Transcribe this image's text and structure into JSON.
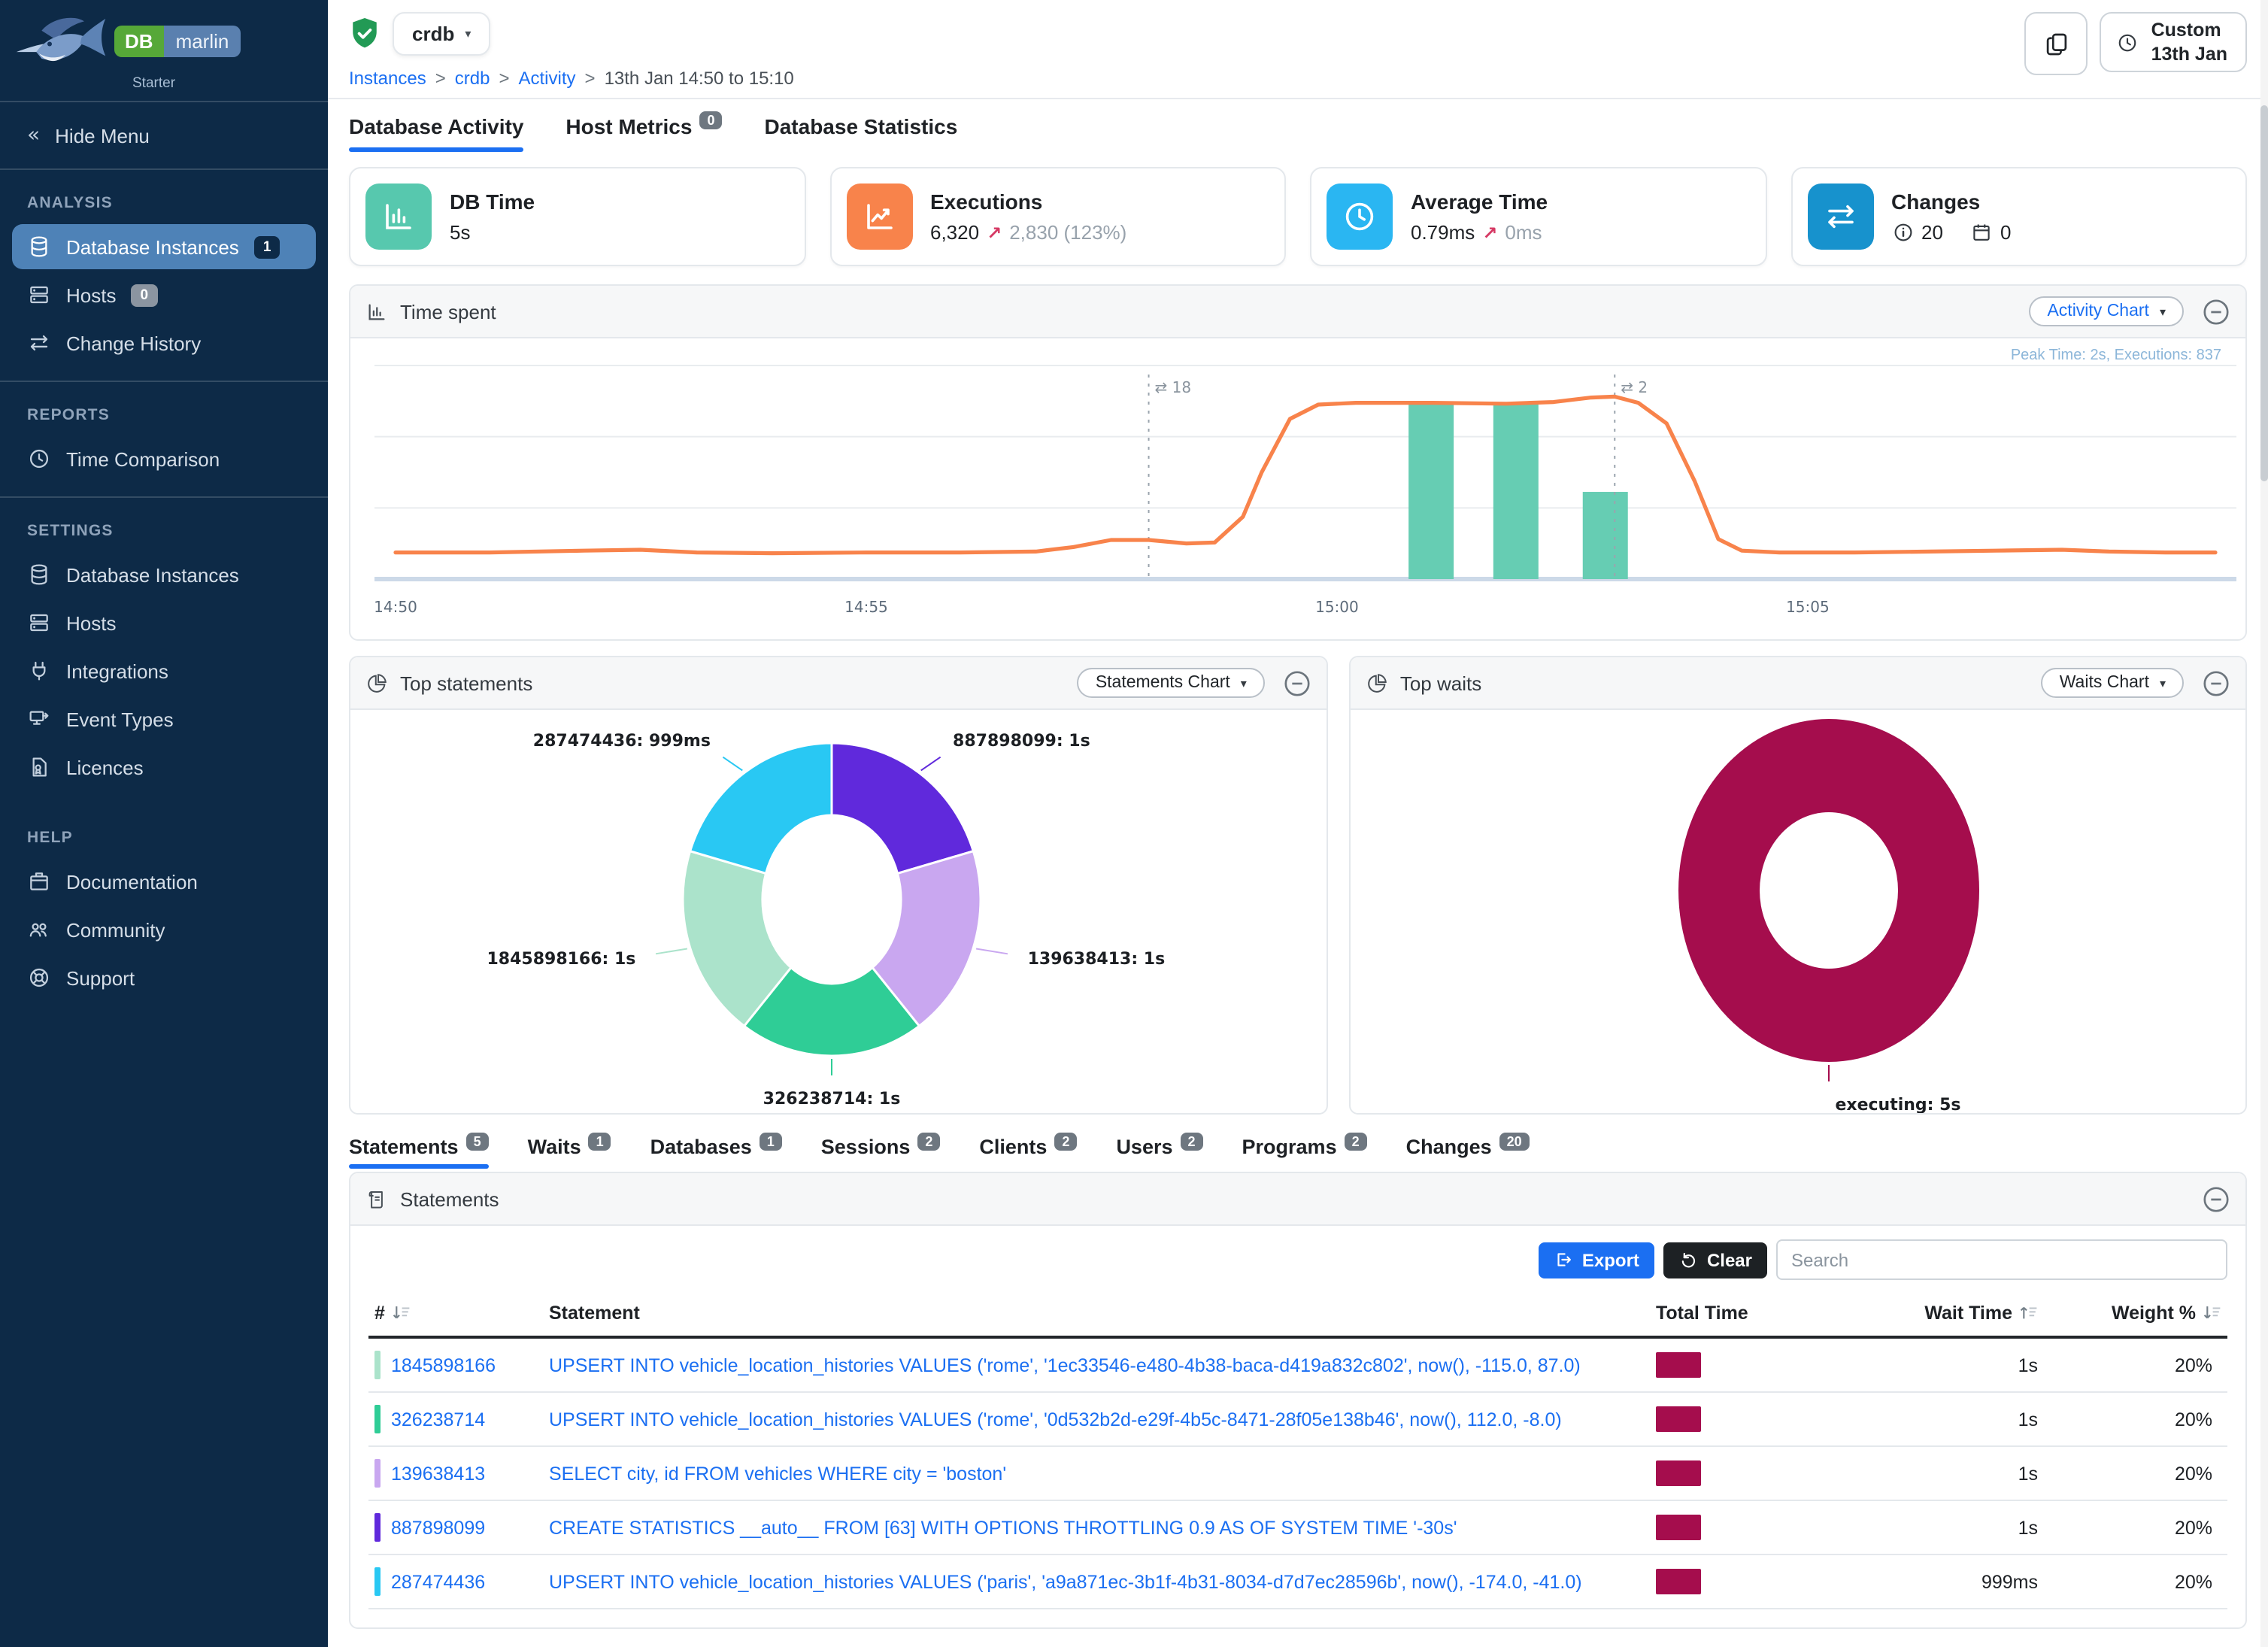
{
  "brand": {
    "db": "DB",
    "marlin": "marlin",
    "edition": "Starter"
  },
  "colors": {
    "accent_blue": "#1b6ff2",
    "db_time_icon": "#57c8ae",
    "executions_icon": "#f8834b",
    "avg_time_icon": "#2ab6f2",
    "changes_icon": "#1792cd",
    "total_time_bar": "#a50d4d"
  },
  "topbar": {
    "instance": "crdb",
    "breadcrumbs": [
      {
        "label": "Instances",
        "link": true
      },
      {
        "label": "crdb",
        "link": true
      },
      {
        "label": "Activity",
        "link": true
      },
      {
        "label": "13th Jan 14:50 to 15:10",
        "link": false
      }
    ],
    "custom_line1": "Custom",
    "custom_line2": "13th Jan"
  },
  "sidebar": {
    "hide_menu": "Hide Menu",
    "sections": [
      {
        "label": "ANALYSIS",
        "divider": false,
        "items": [
          {
            "label": "Database Instances",
            "icon": "database",
            "badge": "1",
            "active": true
          },
          {
            "label": "Hosts",
            "icon": "server",
            "badge": "0"
          },
          {
            "label": "Change History",
            "icon": "swap"
          }
        ]
      },
      {
        "label": "REPORTS",
        "divider": true,
        "items": [
          {
            "label": "Time Comparison",
            "icon": "clock"
          }
        ]
      },
      {
        "label": "SETTINGS",
        "divider": true,
        "items": [
          {
            "label": "Database Instances",
            "icon": "database"
          },
          {
            "label": "Hosts",
            "icon": "server"
          },
          {
            "label": "Integrations",
            "icon": "plug"
          },
          {
            "label": "Event Types",
            "icon": "event"
          },
          {
            "label": "Licences",
            "icon": "licence"
          }
        ]
      },
      {
        "label": "HELP",
        "divider": false,
        "items": [
          {
            "label": "Documentation",
            "icon": "docs"
          },
          {
            "label": "Community",
            "icon": "people"
          },
          {
            "label": "Support",
            "icon": "support"
          }
        ]
      }
    ]
  },
  "tabs": [
    {
      "label": "Database Activity",
      "active": true
    },
    {
      "label": "Host Metrics",
      "badge": "0",
      "active": false
    },
    {
      "label": "Database Statistics",
      "active": false
    }
  ],
  "cards": {
    "db_time": {
      "title": "DB Time",
      "value": "5s"
    },
    "executions": {
      "title": "Executions",
      "value": "6,320",
      "delta_arrow": "↗",
      "delta": "2,830 (123%)"
    },
    "avg_time": {
      "title": "Average Time",
      "value": "0.79ms",
      "delta_arrow": "↗",
      "delta": "0ms"
    },
    "changes": {
      "title": "Changes",
      "info_count": "20",
      "event_count": "0"
    }
  },
  "time_spent": {
    "title": "Time spent",
    "chart_type_label": "Activity Chart",
    "peak_label": "Peak Time: 2s, Executions: 837",
    "line_color": "#f8834b",
    "bar_color": "#66cdb3",
    "y_max": 2.4,
    "x_max": 19.33,
    "x_labels": [
      {
        "label": "14:50",
        "minute": 0
      },
      {
        "label": "14:55",
        "minute": 5
      },
      {
        "label": "15:00",
        "minute": 10
      },
      {
        "label": "15:05",
        "minute": 15
      }
    ],
    "line": [
      [
        0,
        0.3
      ],
      [
        1,
        0.3
      ],
      [
        2,
        0.32
      ],
      [
        2.6,
        0.33
      ],
      [
        3.2,
        0.3
      ],
      [
        4,
        0.29
      ],
      [
        5,
        0.3
      ],
      [
        6,
        0.3
      ],
      [
        6.8,
        0.31
      ],
      [
        7.2,
        0.36
      ],
      [
        7.6,
        0.44
      ],
      [
        8,
        0.44
      ],
      [
        8.4,
        0.4
      ],
      [
        8.7,
        0.41
      ],
      [
        9,
        0.7
      ],
      [
        9.2,
        1.2
      ],
      [
        9.5,
        1.8
      ],
      [
        9.8,
        1.96
      ],
      [
        10.2,
        1.98
      ],
      [
        11,
        1.98
      ],
      [
        11.8,
        1.97
      ],
      [
        12.3,
        1.99
      ],
      [
        12.7,
        2.04
      ],
      [
        12.95,
        2.05
      ],
      [
        13.2,
        1.98
      ],
      [
        13.5,
        1.75
      ],
      [
        13.8,
        1.1
      ],
      [
        14.05,
        0.45
      ],
      [
        14.3,
        0.32
      ],
      [
        14.7,
        0.3
      ],
      [
        15.5,
        0.3
      ],
      [
        16.3,
        0.31
      ],
      [
        17,
        0.32
      ],
      [
        17.7,
        0.33
      ],
      [
        18.2,
        0.31
      ],
      [
        18.8,
        0.3
      ],
      [
        19.33,
        0.3
      ]
    ],
    "bars": [
      {
        "minute": 11.0,
        "value": 1.97
      },
      {
        "minute": 11.9,
        "value": 1.97
      },
      {
        "minute": 12.85,
        "value": 0.98
      }
    ],
    "markers": [
      {
        "minute": 8,
        "label": "⇄ 18"
      },
      {
        "minute": 12.95,
        "label": "⇄ 2"
      }
    ]
  },
  "top_statements": {
    "title": "Top statements",
    "chart_type_label": "Statements Chart",
    "slices": [
      {
        "id": "887898099",
        "time": "1s",
        "pct": 20,
        "color": "#6029dc"
      },
      {
        "id": "139638413",
        "time": "1s",
        "pct": 20,
        "color": "#c9a7f0"
      },
      {
        "id": "326238714",
        "time": "1s",
        "pct": 20,
        "color": "#2fcd96"
      },
      {
        "id": "1845898166",
        "time": "1s",
        "pct": 20,
        "color": "#abe3cb"
      },
      {
        "id": "287474436",
        "time": "999ms",
        "pct": 20,
        "color": "#29c8f3"
      }
    ]
  },
  "top_waits": {
    "title": "Top waits",
    "chart_type_label": "Waits Chart",
    "slices": [
      {
        "id": "executing",
        "time": "5s",
        "pct": 100,
        "color": "#a50d4d"
      }
    ]
  },
  "detail_tabs": [
    {
      "label": "Statements",
      "badge": "5",
      "active": true
    },
    {
      "label": "Waits",
      "badge": "1"
    },
    {
      "label": "Databases",
      "badge": "1"
    },
    {
      "label": "Sessions",
      "badge": "2"
    },
    {
      "label": "Clients",
      "badge": "2"
    },
    {
      "label": "Users",
      "badge": "2"
    },
    {
      "label": "Programs",
      "badge": "2"
    },
    {
      "label": "Changes",
      "badge": "20"
    }
  ],
  "statements": {
    "title": "Statements",
    "export_label": "Export",
    "clear_label": "Clear",
    "search_placeholder": "Search",
    "columns": [
      {
        "label": "#",
        "sort": "down"
      },
      {
        "label": "Statement"
      },
      {
        "label": "Total Time"
      },
      {
        "label": "Wait Time",
        "sort": "up",
        "align": "right"
      },
      {
        "label": "Weight %",
        "sort": "down",
        "align": "right"
      }
    ],
    "rows": [
      {
        "id": "1845898166",
        "color": "#abe3cb",
        "sql": "UPSERT INTO vehicle_location_histories VALUES ('rome', '1ec33546-e480-4b38-baca-d419a832c802', now(), -115.0, 87.0)",
        "wait_time": "1s",
        "weight": "20%"
      },
      {
        "id": "326238714",
        "color": "#2fcd96",
        "sql": "UPSERT INTO vehicle_location_histories VALUES ('rome', '0d532b2d-e29f-4b5c-8471-28f05e138b46', now(), 112.0, -8.0)",
        "wait_time": "1s",
        "weight": "20%"
      },
      {
        "id": "139638413",
        "color": "#c9a7f0",
        "sql": "SELECT city, id FROM vehicles WHERE city = 'boston'",
        "wait_time": "1s",
        "weight": "20%"
      },
      {
        "id": "887898099",
        "color": "#6029dc",
        "sql": "CREATE STATISTICS __auto__ FROM [63] WITH OPTIONS THROTTLING 0.9 AS OF SYSTEM TIME '-30s'",
        "wait_time": "1s",
        "weight": "20%"
      },
      {
        "id": "287474436",
        "color": "#29c8f3",
        "sql": "UPSERT INTO vehicle_location_histories VALUES ('paris', 'a9a871ec-3b1f-4b31-8034-d7d7ec28596b', now(), -174.0, -41.0)",
        "wait_time": "999ms",
        "weight": "20%"
      }
    ]
  }
}
